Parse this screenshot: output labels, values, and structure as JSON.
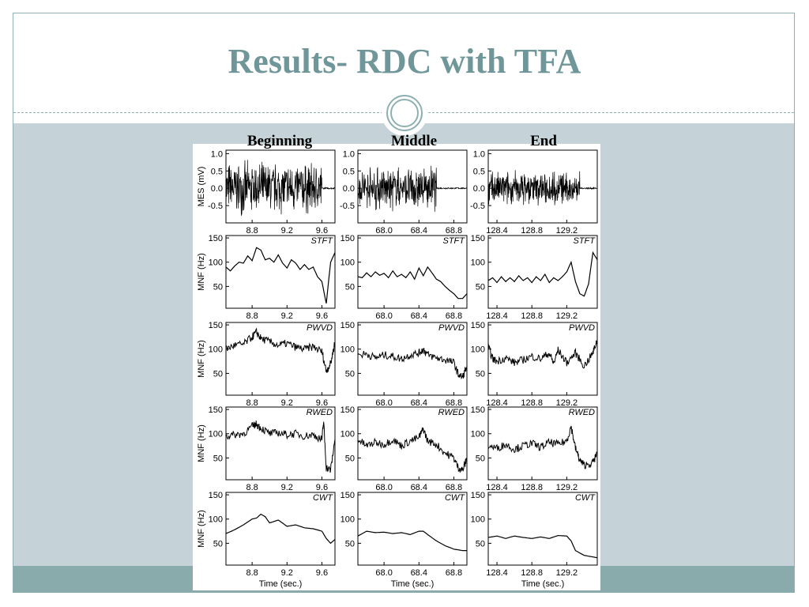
{
  "slide": {
    "title": "Results- RDC with TFA",
    "columns": [
      "Beginning",
      "Middle",
      "End"
    ]
  },
  "colors": {
    "title": "#6f9698",
    "panel": "#c5d3d8",
    "band": "#89abac",
    "accent": "#8fb0b2"
  },
  "chart_data": {
    "type": "line",
    "rows": [
      {
        "method": "",
        "ylabel": "MES (mV)",
        "yticks": [
          "1.0",
          "0.5",
          "0.0",
          "-0.5"
        ],
        "kind": "emg"
      },
      {
        "method": "STFT",
        "ylabel": "MNF (Hz)",
        "yticks": [
          "150",
          "100",
          "50"
        ],
        "kind": "mnf"
      },
      {
        "method": "PWVD",
        "ylabel": "MNF (Hz)",
        "yticks": [
          "150",
          "100",
          "50"
        ],
        "kind": "mnf"
      },
      {
        "method": "RWED",
        "ylabel": "MNF (Hz)",
        "yticks": [
          "150",
          "100",
          "50"
        ],
        "kind": "mnf"
      },
      {
        "method": "CWT",
        "ylabel": "MNF (Hz)",
        "yticks": [
          "150",
          "100",
          "50"
        ],
        "kind": "mnf"
      }
    ],
    "columns": [
      {
        "name": "Beginning",
        "xlim": [
          8.5,
          9.75
        ],
        "xticks": [
          "8.8",
          "9.2",
          "9.6"
        ]
      },
      {
        "name": "Middle",
        "xlim": [
          67.7,
          68.95
        ],
        "xticks": [
          "68.0",
          "68.4",
          "68.8"
        ]
      },
      {
        "name": "End",
        "xlim": [
          128.3,
          129.55
        ],
        "xticks": [
          "128.4",
          "128.8",
          "129.2"
        ]
      }
    ],
    "xlabel": "Time (sec.)",
    "series": {
      "STFT": [
        [
          [
            8.5,
            90
          ],
          [
            8.55,
            82
          ],
          [
            8.6,
            92
          ],
          [
            8.65,
            100
          ],
          [
            8.7,
            98
          ],
          [
            8.75,
            113
          ],
          [
            8.8,
            103
          ],
          [
            8.85,
            130
          ],
          [
            8.9,
            125
          ],
          [
            8.95,
            105
          ],
          [
            9.0,
            108
          ],
          [
            9.05,
            100
          ],
          [
            9.1,
            115
          ],
          [
            9.15,
            98
          ],
          [
            9.2,
            88
          ],
          [
            9.25,
            105
          ],
          [
            9.3,
            98
          ],
          [
            9.35,
            85
          ],
          [
            9.4,
            95
          ],
          [
            9.45,
            85
          ],
          [
            9.5,
            90
          ],
          [
            9.55,
            70
          ],
          [
            9.6,
            60
          ],
          [
            9.65,
            15
          ],
          [
            9.7,
            100
          ],
          [
            9.75,
            120
          ]
        ],
        [
          [
            67.7,
            70
          ],
          [
            67.75,
            68
          ],
          [
            67.8,
            78
          ],
          [
            67.85,
            70
          ],
          [
            67.9,
            80
          ],
          [
            67.95,
            73
          ],
          [
            68.0,
            77
          ],
          [
            68.05,
            68
          ],
          [
            68.1,
            82
          ],
          [
            68.15,
            70
          ],
          [
            68.2,
            75
          ],
          [
            68.25,
            68
          ],
          [
            68.3,
            80
          ],
          [
            68.35,
            65
          ],
          [
            68.4,
            88
          ],
          [
            68.45,
            72
          ],
          [
            68.5,
            90
          ],
          [
            68.55,
            78
          ],
          [
            68.6,
            65
          ],
          [
            68.65,
            60
          ],
          [
            68.7,
            50
          ],
          [
            68.75,
            42
          ],
          [
            68.8,
            35
          ],
          [
            68.85,
            25
          ],
          [
            68.9,
            25
          ],
          [
            68.95,
            35
          ]
        ],
        [
          [
            128.3,
            62
          ],
          [
            128.35,
            68
          ],
          [
            128.4,
            58
          ],
          [
            128.45,
            70
          ],
          [
            128.5,
            60
          ],
          [
            128.55,
            68
          ],
          [
            128.6,
            60
          ],
          [
            128.65,
            72
          ],
          [
            128.7,
            62
          ],
          [
            128.75,
            68
          ],
          [
            128.8,
            58
          ],
          [
            128.85,
            70
          ],
          [
            128.9,
            62
          ],
          [
            128.95,
            75
          ],
          [
            129.0,
            58
          ],
          [
            129.05,
            68
          ],
          [
            129.1,
            62
          ],
          [
            129.15,
            70
          ],
          [
            129.2,
            80
          ],
          [
            129.25,
            100
          ],
          [
            129.3,
            60
          ],
          [
            129.35,
            35
          ],
          [
            129.4,
            30
          ],
          [
            129.45,
            55
          ],
          [
            129.5,
            120
          ],
          [
            129.55,
            105
          ]
        ]
      ],
      "PWVD": [
        [
          [
            8.5,
            100
          ],
          [
            8.6,
            108
          ],
          [
            8.7,
            110
          ],
          [
            8.8,
            125
          ],
          [
            8.85,
            135
          ],
          [
            8.9,
            122
          ],
          [
            9.0,
            115
          ],
          [
            9.1,
            108
          ],
          [
            9.2,
            112
          ],
          [
            9.3,
            104
          ],
          [
            9.4,
            100
          ],
          [
            9.5,
            105
          ],
          [
            9.6,
            95
          ],
          [
            9.65,
            55
          ],
          [
            9.7,
            70
          ],
          [
            9.75,
            115
          ]
        ],
        [
          [
            67.7,
            88
          ],
          [
            67.8,
            90
          ],
          [
            67.9,
            82
          ],
          [
            68.0,
            88
          ],
          [
            68.1,
            85
          ],
          [
            68.2,
            80
          ],
          [
            68.3,
            88
          ],
          [
            68.4,
            92
          ],
          [
            68.45,
            100
          ],
          [
            68.5,
            88
          ],
          [
            68.6,
            82
          ],
          [
            68.7,
            78
          ],
          [
            68.8,
            72
          ],
          [
            68.85,
            48
          ],
          [
            68.9,
            42
          ],
          [
            68.95,
            65
          ]
        ],
        [
          [
            128.3,
            105
          ],
          [
            128.35,
            80
          ],
          [
            128.4,
            75
          ],
          [
            128.5,
            82
          ],
          [
            128.6,
            72
          ],
          [
            128.7,
            78
          ],
          [
            128.8,
            85
          ],
          [
            128.9,
            80
          ],
          [
            129.0,
            92
          ],
          [
            129.05,
            70
          ],
          [
            129.1,
            98
          ],
          [
            129.2,
            72
          ],
          [
            129.3,
            92
          ],
          [
            129.4,
            65
          ],
          [
            129.5,
            92
          ],
          [
            129.55,
            120
          ]
        ]
      ],
      "RWED": [
        [
          [
            8.5,
            95
          ],
          [
            8.6,
            98
          ],
          [
            8.7,
            100
          ],
          [
            8.8,
            115
          ],
          [
            8.85,
            120
          ],
          [
            8.9,
            112
          ],
          [
            9.0,
            100
          ],
          [
            9.1,
            102
          ],
          [
            9.2,
            98
          ],
          [
            9.3,
            100
          ],
          [
            9.4,
            95
          ],
          [
            9.5,
            98
          ],
          [
            9.6,
            88
          ],
          [
            9.62,
            125
          ],
          [
            9.65,
            30
          ],
          [
            9.7,
            25
          ],
          [
            9.75,
            88
          ]
        ],
        [
          [
            67.7,
            88
          ],
          [
            67.8,
            75
          ],
          [
            67.9,
            82
          ],
          [
            68.0,
            78
          ],
          [
            68.1,
            88
          ],
          [
            68.2,
            75
          ],
          [
            68.3,
            85
          ],
          [
            68.4,
            92
          ],
          [
            68.45,
            110
          ],
          [
            68.5,
            85
          ],
          [
            68.6,
            78
          ],
          [
            68.7,
            60
          ],
          [
            68.8,
            50
          ],
          [
            68.85,
            30
          ],
          [
            68.9,
            25
          ],
          [
            68.95,
            48
          ]
        ],
        [
          [
            128.3,
            75
          ],
          [
            128.4,
            70
          ],
          [
            128.5,
            78
          ],
          [
            128.6,
            68
          ],
          [
            128.7,
            75
          ],
          [
            128.8,
            80
          ],
          [
            128.9,
            72
          ],
          [
            129.0,
            82
          ],
          [
            129.1,
            78
          ],
          [
            129.2,
            85
          ],
          [
            129.25,
            115
          ],
          [
            129.3,
            70
          ],
          [
            129.35,
            45
          ],
          [
            129.4,
            35
          ],
          [
            129.5,
            40
          ],
          [
            129.55,
            60
          ]
        ]
      ],
      "CWT": [
        [
          [
            8.5,
            70
          ],
          [
            8.6,
            78
          ],
          [
            8.7,
            88
          ],
          [
            8.8,
            100
          ],
          [
            8.85,
            102
          ],
          [
            8.9,
            110
          ],
          [
            8.95,
            105
          ],
          [
            9.0,
            92
          ],
          [
            9.1,
            98
          ],
          [
            9.2,
            85
          ],
          [
            9.3,
            88
          ],
          [
            9.4,
            82
          ],
          [
            9.5,
            80
          ],
          [
            9.6,
            75
          ],
          [
            9.65,
            60
          ],
          [
            9.7,
            50
          ],
          [
            9.75,
            58
          ]
        ],
        [
          [
            67.7,
            65
          ],
          [
            67.8,
            75
          ],
          [
            67.9,
            72
          ],
          [
            68.0,
            73
          ],
          [
            68.1,
            70
          ],
          [
            68.2,
            72
          ],
          [
            68.3,
            68
          ],
          [
            68.4,
            75
          ],
          [
            68.45,
            75
          ],
          [
            68.5,
            68
          ],
          [
            68.6,
            55
          ],
          [
            68.7,
            45
          ],
          [
            68.8,
            38
          ],
          [
            68.9,
            35
          ],
          [
            68.95,
            35
          ]
        ],
        [
          [
            128.3,
            62
          ],
          [
            128.4,
            65
          ],
          [
            128.5,
            60
          ],
          [
            128.6,
            65
          ],
          [
            128.7,
            62
          ],
          [
            128.8,
            60
          ],
          [
            128.9,
            63
          ],
          [
            129.0,
            60
          ],
          [
            129.1,
            66
          ],
          [
            129.2,
            65
          ],
          [
            129.25,
            55
          ],
          [
            129.3,
            35
          ],
          [
            129.4,
            25
          ],
          [
            129.5,
            22
          ],
          [
            129.55,
            20
          ]
        ]
      ],
      "MES": [
        {
          "active_until": 9.6,
          "amplitude": 0.85
        },
        {
          "active_until": 68.6,
          "amplitude": 0.7
        },
        {
          "active_until": 129.35,
          "amplitude": 0.55
        }
      ]
    }
  }
}
